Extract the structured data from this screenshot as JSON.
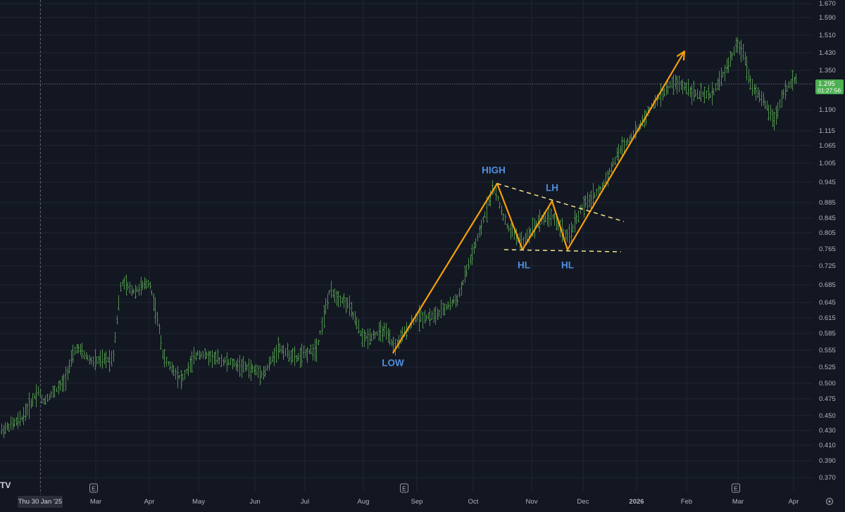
{
  "chart_data": {
    "type": "ohlc",
    "series": [],
    "colors": {
      "background": "#131722",
      "bar": "#4d8f4b",
      "axis_text": "#b2b5be",
      "grid": "#1f2433",
      "price_tag": "#4caf50",
      "annotation_line": "#f59e0b",
      "annotation_label": "#4f8fe0",
      "trendline_dashed": "#f3e58a",
      "crosshair": "#5d6070"
    },
    "y_axis": {
      "ticks": [
        "1.670",
        "1.590",
        "1.510",
        "1.430",
        "1.350",
        "1.295",
        "1.190",
        "1.115",
        "1.065",
        "1.005",
        "0.945",
        "0.885",
        "0.845",
        "0.805",
        "0.765",
        "0.725",
        "0.685",
        "0.645",
        "0.615",
        "0.585",
        "0.555",
        "0.525",
        "0.500",
        "0.475",
        "0.450",
        "0.430",
        "0.410",
        "0.390",
        "0.370"
      ]
    },
    "x_axis": {
      "ticks": [
        "Thu 30 Jan '25",
        "Mar",
        "Apr",
        "May",
        "Jun",
        "Jul",
        "Aug",
        "Sep",
        "Oct",
        "Nov",
        "Dec",
        "2026",
        "Feb",
        "Mar",
        "Apr"
      ]
    },
    "price_tag": {
      "price": "1.295",
      "countdown": "01:27:56"
    },
    "earnings_markers": [
      "E",
      "E",
      "E"
    ],
    "annotations": {
      "labels": [
        "LOW",
        "HIGH",
        "LH",
        "HL",
        "HL"
      ],
      "zigzag": [
        {
          "date": "2025-08-26",
          "price": 0.552
        },
        {
          "date": "2025-10-13",
          "price": 0.945
        },
        {
          "date": "2025-10-27",
          "price": 0.765
        },
        {
          "date": "2025-11-10",
          "price": 0.885
        },
        {
          "date": "2025-11-20",
          "price": 0.765
        },
        {
          "date": "2026-01-31",
          "price": 1.43
        }
      ],
      "descending_trendline": [
        {
          "date": "2025-10-13",
          "price": 0.945
        },
        {
          "date": "2025-12-16",
          "price": 0.835
        }
      ],
      "support_line": [
        {
          "date": "2025-10-23",
          "price": 0.768
        },
        {
          "date": "2025-12-12",
          "price": 0.762
        }
      ]
    },
    "brand": "TV"
  }
}
